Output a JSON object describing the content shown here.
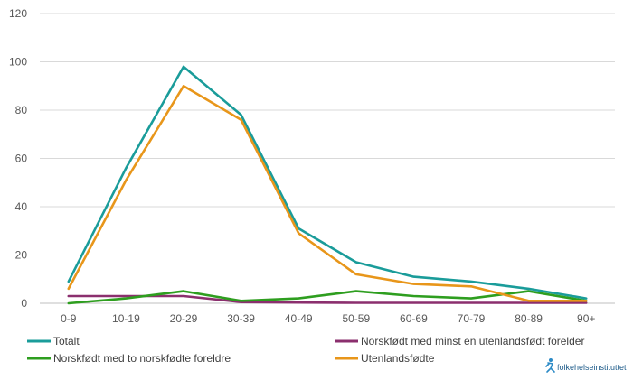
{
  "chart_data": {
    "type": "line",
    "categories": [
      "0-9",
      "10-19",
      "20-29",
      "30-39",
      "40-49",
      "50-59",
      "60-69",
      "70-79",
      "80-89",
      "90+"
    ],
    "ylim": [
      0,
      120
    ],
    "yticks": [
      0,
      20,
      40,
      60,
      80,
      100,
      120
    ],
    "grid": true,
    "legend_position": "bottom",
    "series": [
      {
        "name": "Totalt",
        "color": "#1a9c9a",
        "values": [
          9,
          56,
          98,
          78,
          31,
          17,
          11,
          9,
          6,
          2
        ]
      },
      {
        "name": "Norskfødt med minst en utenlandsfødt forelder",
        "color": "#8b2f6e",
        "values": [
          3,
          3,
          3,
          0.5,
          0.3,
          0.2,
          0.2,
          0.2,
          0.2,
          0.2
        ]
      },
      {
        "name": "Norskfødt med to norskfødte foreldre",
        "color": "#2e9e1f",
        "values": [
          0,
          2,
          5,
          1,
          2,
          5,
          3,
          2,
          5,
          1
        ]
      },
      {
        "name": "Utenlandsfødte",
        "color": "#e8961a",
        "values": [
          6,
          51,
          90,
          76,
          29,
          12,
          8,
          7,
          1,
          1
        ]
      }
    ]
  },
  "logo": {
    "text": "folkehelseinstituttet",
    "icon": "person-running-icon"
  }
}
